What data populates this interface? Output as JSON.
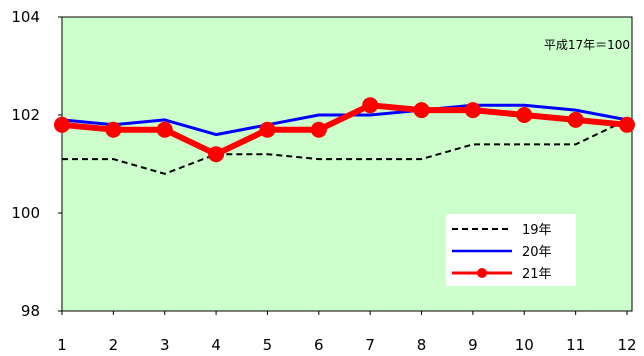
{
  "chart_data": {
    "type": "line",
    "annotation": "平成17年＝100",
    "categories": [
      "1",
      "2",
      "3",
      "4",
      "5",
      "6",
      "7",
      "8",
      "9",
      "10",
      "11",
      "12"
    ],
    "ylim": [
      98,
      104
    ],
    "yticks": [
      "98",
      "100",
      "102",
      "104"
    ],
    "grid": false,
    "legend_position": "bottom-right",
    "series": [
      {
        "name": "19年",
        "values": [
          101.1,
          101.1,
          100.8,
          101.2,
          101.2,
          101.1,
          101.1,
          101.1,
          101.4,
          101.4,
          101.4,
          101.9
        ],
        "color": "#000000",
        "style": "dashed"
      },
      {
        "name": "20年",
        "values": [
          101.9,
          101.8,
          101.9,
          101.6,
          101.8,
          102.0,
          102.0,
          102.1,
          102.2,
          102.2,
          102.1,
          101.9
        ],
        "color": "#0000ff",
        "style": "solid"
      },
      {
        "name": "21年",
        "values": [
          101.8,
          101.7,
          101.7,
          101.2,
          101.7,
          101.7,
          102.2,
          102.1,
          102.1,
          102.0,
          101.9,
          101.8
        ],
        "color": "#ff0000",
        "style": "solid-marker"
      }
    ]
  },
  "colors": {
    "plot_background": "#ccffcc",
    "axis": "#000000"
  }
}
